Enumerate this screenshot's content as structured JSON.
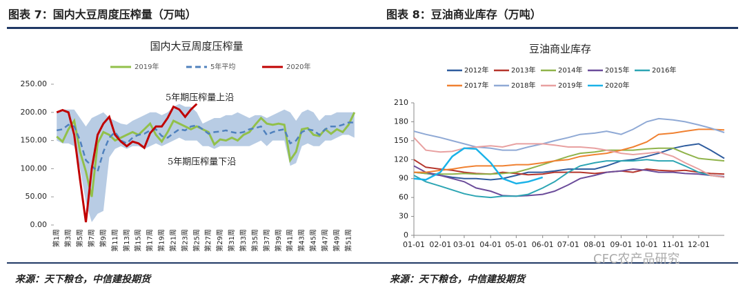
{
  "chart_data": [
    {
      "type": "line",
      "caption": "图表 7：国内大豆周度压榨量（万吨）",
      "title": "国内大豆周度压榨量",
      "source": "来源：天下粮仓，中信建投期货",
      "categories": [
        "第1周",
        null,
        "第3周",
        null,
        "第5周",
        null,
        "第7周",
        null,
        "第9周",
        null,
        "第11周",
        null,
        "第13周",
        null,
        "第15周",
        null,
        "第17周",
        null,
        "第19周",
        null,
        "第21周",
        null,
        "第23周",
        null,
        "第25周",
        null,
        "第27周",
        null,
        "第29周",
        null,
        "第31周",
        null,
        "第33周",
        null,
        "第35周",
        null,
        "第37周",
        null,
        "第39周",
        null,
        "第41周",
        null,
        "第43周",
        null,
        "第45周",
        null,
        "第47周",
        null,
        "第49周",
        null,
        "第51周",
        null
      ],
      "ylim": [
        0,
        250
      ],
      "yticks": [
        {
          "value": 0,
          "label": "0.00"
        },
        {
          "value": 50,
          "label": "50.00"
        },
        {
          "value": 100,
          "label": "100.00"
        },
        {
          "value": 150,
          "label": "150.00"
        },
        {
          "value": 200,
          "label": "200.00"
        },
        {
          "value": 250,
          "label": "250.00"
        }
      ],
      "band": {
        "color": "#b8cce4",
        "upper": [
          200,
          205,
          205,
          205,
          190,
          175,
          190,
          195,
          200,
          190,
          185,
          180,
          178,
          185,
          190,
          195,
          200,
          200,
          195,
          200,
          210,
          215,
          210,
          210,
          200,
          180,
          185,
          190,
          190,
          195,
          195,
          200,
          195,
          190,
          195,
          195,
          190,
          195,
          200,
          205,
          200,
          185,
          200,
          205,
          200,
          185,
          195,
          195,
          200,
          200,
          200,
          200
        ],
        "lower": [
          150,
          145,
          145,
          140,
          100,
          40,
          5,
          20,
          25,
          120,
          135,
          140,
          135,
          140,
          140,
          135,
          140,
          145,
          140,
          145,
          150,
          155,
          150,
          150,
          150,
          140,
          140,
          135,
          140,
          140,
          140,
          140,
          140,
          140,
          145,
          150,
          140,
          150,
          150,
          150,
          105,
          110,
          140,
          145,
          140,
          140,
          150,
          150,
          155,
          160,
          160,
          155
        ]
      },
      "annotations": [
        "5年期压榨量上沿",
        "5年期压榨量下沿"
      ],
      "series": [
        {
          "name": "2019年",
          "color": "#92c04a",
          "dash": false,
          "values": [
            157,
            148,
            170,
            185,
            130,
            95,
            50,
            145,
            165,
            160,
            150,
            155,
            160,
            165,
            160,
            170,
            180,
            160,
            148,
            165,
            185,
            180,
            175,
            170,
            175,
            170,
            165,
            143,
            152,
            150,
            155,
            150,
            160,
            165,
            178,
            190,
            180,
            178,
            180,
            178,
            115,
            130,
            170,
            172,
            160,
            158,
            170,
            162,
            170,
            165,
            178,
            200
          ]
        },
        {
          "name": "5年平均",
          "color": "#4f81bd",
          "dash": true,
          "values": [
            168,
            170,
            178,
            175,
            150,
            115,
            105,
            95,
            130,
            155,
            165,
            150,
            145,
            155,
            160,
            162,
            168,
            170,
            158,
            155,
            163,
            170,
            168,
            175,
            177,
            170,
            162,
            165,
            166,
            168,
            165,
            163,
            165,
            170,
            172,
            175,
            160,
            165,
            168,
            170,
            145,
            150,
            165,
            170,
            168,
            160,
            170,
            175,
            175,
            178,
            182,
            182
          ]
        },
        {
          "name": "2020年",
          "color": "#c00000",
          "dash": false,
          "values": [
            200,
            204,
            200,
            160,
            80,
            5,
            100,
            160,
            180,
            192,
            160,
            148,
            140,
            148,
            145,
            137,
            163,
            175,
            175,
            190,
            210,
            205,
            192,
            205,
            215,
            null,
            null,
            null,
            null,
            null,
            null,
            null,
            null,
            null,
            null,
            null,
            null,
            null,
            null,
            null,
            null,
            null,
            null,
            null,
            null,
            null,
            null,
            null,
            null,
            null,
            null,
            null
          ]
        }
      ]
    },
    {
      "type": "line",
      "caption": "图表 8：豆油商业库存（万吨）",
      "title": "豆油商业库存",
      "source": "来源：天下粮仓，中信建投期货",
      "x": [
        "01-01",
        "01-15",
        "02-01",
        "02-15",
        "03-01",
        "03-15",
        "04-01",
        "04-15",
        "05-01",
        "05-15",
        "06-01",
        "06-15",
        "07-01",
        "07-15",
        "08-01",
        "08-15",
        "09-01",
        "09-15",
        "10-01",
        "10-15",
        "11-01",
        "11-15",
        "12-01",
        "12-15",
        "12-31"
      ],
      "xlim": [
        "01-01",
        "12-31"
      ],
      "xticks": [
        "01-01",
        "02-01",
        "03-01",
        "04-01",
        "05-01",
        "06-01",
        "07-01",
        "08-01",
        "09-01",
        "10-01",
        "11-01",
        "12-01"
      ],
      "ylim": [
        0,
        210
      ],
      "yticks": [
        0,
        30,
        60,
        90,
        120,
        150,
        180,
        210
      ],
      "series": [
        {
          "name": "2012年",
          "color": "#2e5c9e",
          "values": [
            100,
            98,
            95,
            92,
            90,
            90,
            88,
            90,
            95,
            100,
            100,
            102,
            105,
            105,
            105,
            110,
            118,
            120,
            125,
            130,
            138,
            142,
            145,
            135,
            122
          ]
        },
        {
          "name": "2013年",
          "color": "#b5352b",
          "values": [
            120,
            108,
            105,
            103,
            100,
            98,
            97,
            100,
            98,
            96,
            97,
            100,
            100,
            100,
            98,
            100,
            102,
            100,
            105,
            103,
            102,
            103,
            100,
            98,
            97
          ]
        },
        {
          "name": "2014年",
          "color": "#8fb34a",
          "values": [
            100,
            98,
            97,
            97,
            98,
            97,
            97,
            98,
            100,
            105,
            112,
            118,
            125,
            130,
            132,
            135,
            135,
            135,
            137,
            138,
            138,
            130,
            122,
            120,
            118
          ]
        },
        {
          "name": "2015年",
          "color": "#6b4c9a",
          "values": [
            110,
            100,
            95,
            90,
            85,
            75,
            70,
            63,
            62,
            63,
            65,
            70,
            80,
            90,
            95,
            100,
            102,
            105,
            103,
            100,
            100,
            98,
            97,
            95,
            93
          ]
        },
        {
          "name": "2016年",
          "color": "#2ca5b3",
          "values": [
            95,
            85,
            78,
            72,
            66,
            62,
            60,
            62,
            62,
            65,
            75,
            85,
            100,
            110,
            115,
            118,
            118,
            118,
            120,
            118,
            118,
            110,
            100,
            95,
            92
          ]
        },
        {
          "name": "2017年",
          "color": "#f08030",
          "values": [
            100,
            100,
            103,
            105,
            108,
            110,
            110,
            110,
            112,
            112,
            115,
            118,
            120,
            125,
            128,
            130,
            135,
            140,
            148,
            160,
            162,
            165,
            168,
            168,
            167
          ]
        },
        {
          "name": "2018年",
          "color": "#8fa9d5",
          "values": [
            165,
            160,
            155,
            150,
            145,
            140,
            138,
            135,
            135,
            140,
            145,
            150,
            155,
            160,
            162,
            165,
            160,
            168,
            180,
            185,
            183,
            180,
            175,
            170,
            163
          ]
        },
        {
          "name": "2019年",
          "color": "#e8a0a0",
          "values": [
            155,
            135,
            132,
            133,
            138,
            140,
            142,
            140,
            145,
            145,
            145,
            143,
            140,
            140,
            138,
            135,
            130,
            128,
            130,
            132,
            125,
            115,
            105,
            95,
            92
          ]
        },
        {
          "name": "2020年",
          "color": "#1ab2e8",
          "values": [
            90,
            88,
            100,
            125,
            138,
            137,
            115,
            90,
            82,
            85,
            92,
            null,
            null,
            null,
            null,
            null,
            null,
            null,
            null,
            null,
            null,
            null,
            null,
            null,
            null
          ]
        }
      ]
    }
  ],
  "watermark": "CFC农产品研究"
}
